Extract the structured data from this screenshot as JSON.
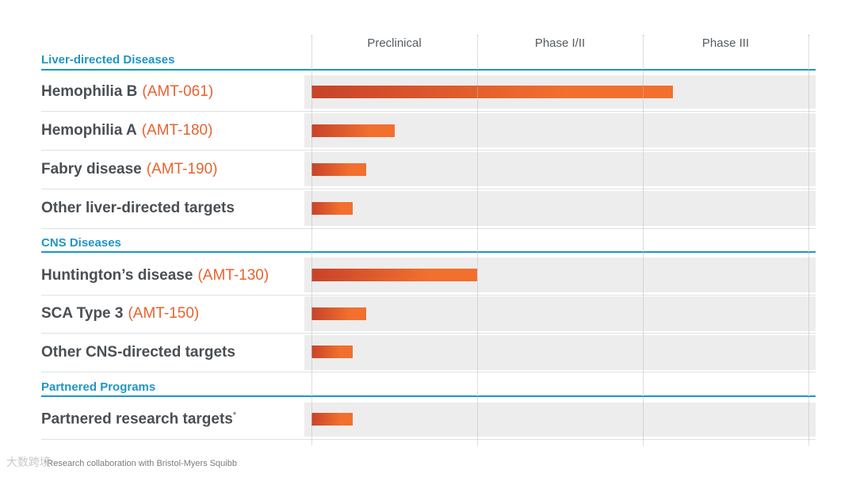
{
  "chart_data": {
    "type": "bar",
    "orientation": "horizontal",
    "title": "",
    "phases": [
      "Preclinical",
      "Phase I/II",
      "Phase III"
    ],
    "xlim": [
      0,
      3
    ],
    "sections": [
      {
        "name": "Liver-directed Diseases",
        "rows": [
          {
            "label": "Hemophilia B",
            "code": "(AMT-061)",
            "value": 2.18
          },
          {
            "label": "Hemophilia A",
            "code": "(AMT-180)",
            "value": 0.5
          },
          {
            "label": "Fabry disease",
            "code": "(AMT-190)",
            "value": 0.33
          },
          {
            "label": "Other liver-directed targets",
            "code": "",
            "value": 0.25
          }
        ]
      },
      {
        "name": "CNS Diseases",
        "rows": [
          {
            "label": "Huntington’s disease",
            "code": "(AMT-130)",
            "value": 1.0
          },
          {
            "label": "SCA Type 3",
            "code": "(AMT-150)",
            "value": 0.33
          },
          {
            "label": "Other CNS-directed targets",
            "code": "",
            "value": 0.25
          }
        ]
      },
      {
        "name": "Partnered Programs",
        "rows": [
          {
            "label": "Partnered research targets",
            "code": "",
            "sup": "*",
            "value": 0.25
          }
        ]
      }
    ]
  },
  "footnote": "*Research collaboration with Bristol-Myers Squibb",
  "watermark": "大数跨境",
  "colors": {
    "accent": "#1f95c6",
    "bar_start": "#c7432a",
    "bar_end": "#f26f2e",
    "code": "#e8622f",
    "row_bg": "#ededed"
  }
}
